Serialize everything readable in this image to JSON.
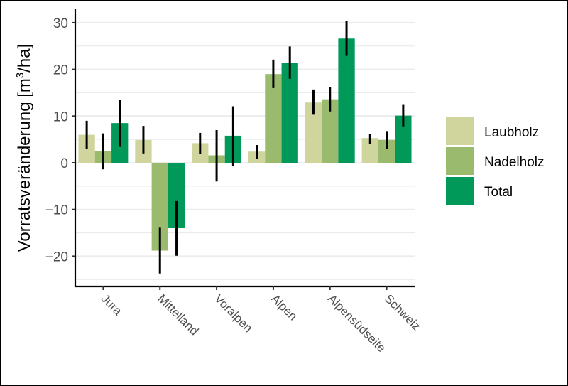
{
  "chart_data": {
    "type": "bar",
    "title": "",
    "xlabel": "",
    "ylabel": "Vorratsveränderung [m³/ha]",
    "ylabel_parts": {
      "prefix": "Vorratsveränderung [m",
      "sup": "3",
      "suffix": "/ha]"
    },
    "ylim": [
      -26,
      33
    ],
    "yticks": [
      -20,
      -10,
      0,
      10,
      20,
      30
    ],
    "ytick_labels": [
      "−20",
      "−10",
      "0",
      "10",
      "20",
      "30"
    ],
    "grid": true,
    "legend_position": "right",
    "categories": [
      "Jura",
      "Mittelland",
      "Voralpen",
      "Alpen",
      "Alpensüdseite",
      "Schweiz"
    ],
    "series": [
      {
        "name": "Laubholz",
        "color": "#cfd59c",
        "values": [
          6.0,
          4.9,
          4.2,
          2.4,
          12.9,
          5.3
        ],
        "ci_low": [
          3.0,
          2.0,
          1.9,
          0.9,
          10.3,
          4.1
        ],
        "ci_high": [
          9.0,
          7.9,
          6.4,
          3.8,
          15.7,
          6.2
        ]
      },
      {
        "name": "Nadelholz",
        "color": "#9aba6e",
        "values": [
          2.5,
          -18.8,
          1.6,
          19.0,
          13.6,
          4.9
        ],
        "ci_low": [
          -1.4,
          -23.7,
          -4.0,
          16.0,
          11.0,
          3.0
        ],
        "ci_high": [
          6.3,
          -13.9,
          7.0,
          22.1,
          16.2,
          6.8
        ]
      },
      {
        "name": "Total",
        "color": "#00995a",
        "values": [
          8.5,
          -14.0,
          5.8,
          21.4,
          26.6,
          10.1
        ],
        "ci_low": [
          3.4,
          -19.9,
          -0.6,
          18.0,
          22.9,
          7.8
        ],
        "ci_high": [
          13.5,
          -8.2,
          12.1,
          24.9,
          30.3,
          12.4
        ]
      }
    ],
    "legend": [
      "Laubholz",
      "Nadelholz",
      "Total"
    ]
  }
}
